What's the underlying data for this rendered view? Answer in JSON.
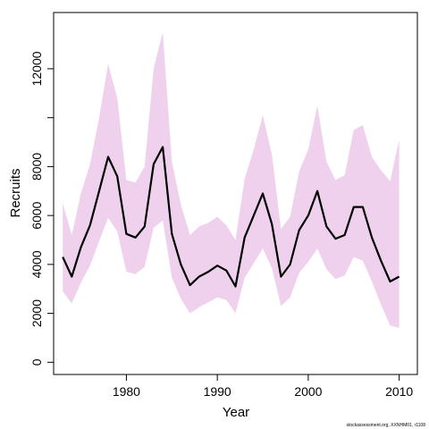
{
  "chart_data": {
    "type": "line",
    "title": "",
    "xlabel": "Year",
    "ylabel": "Recruits",
    "xlim": [
      1972,
      2012
    ],
    "ylim": [
      -500,
      14300
    ],
    "x_ticks": [
      1980,
      1990,
      2000,
      2010
    ],
    "y_ticks": [
      0,
      2000,
      4000,
      6000,
      8000,
      10000,
      12000
    ],
    "y_tick_labels": [
      "0",
      "2000",
      "4000",
      "6000",
      "8000",
      "",
      "12000"
    ],
    "grid": false,
    "legend": "none",
    "colors": {
      "band": "#efd1ed",
      "line": "#000000"
    },
    "series": [
      {
        "type": "line",
        "x": [
          1973,
          1974,
          1975,
          1976,
          1977,
          1978,
          1979,
          1980,
          1981,
          1982,
          1983,
          1984,
          1985,
          1986,
          1987,
          1988,
          1989,
          1990,
          1991,
          1992,
          1993,
          1994,
          1995,
          1996,
          1997,
          1998,
          1999,
          2000,
          2001,
          2002,
          2003,
          2004,
          2005,
          2006,
          2007,
          2008,
          2009,
          2010
        ],
        "values": [
          4300,
          3500,
          4700,
          5600,
          7000,
          8400,
          7600,
          5250,
          5100,
          5550,
          8100,
          8800,
          5250,
          4000,
          3150,
          3500,
          3700,
          3950,
          3750,
          3100,
          5100,
          6000,
          6900,
          5650,
          3500,
          4000,
          5400,
          6000,
          7000,
          5550,
          5050,
          5200,
          6350,
          6350,
          5100,
          4150,
          3300,
          3500
        ]
      },
      {
        "type": "area",
        "x": [
          1973,
          1974,
          1975,
          1976,
          1977,
          1978,
          1979,
          1980,
          1981,
          1982,
          1983,
          1984,
          1985,
          1986,
          1987,
          1988,
          1989,
          1990,
          1991,
          1992,
          1993,
          1994,
          1995,
          1996,
          1997,
          1998,
          1999,
          2000,
          2001,
          2002,
          2003,
          2004,
          2005,
          2006,
          2007,
          2008,
          2009,
          2010
        ],
        "upper": [
          6500,
          5200,
          6900,
          8100,
          10000,
          12200,
          10800,
          7450,
          7350,
          8000,
          12000,
          13500,
          8200,
          6450,
          5200,
          5550,
          5700,
          5950,
          5600,
          5000,
          7500,
          8700,
          10100,
          8500,
          5450,
          5950,
          7800,
          8700,
          10500,
          8200,
          7450,
          7650,
          9500,
          9700,
          8400,
          7850,
          7400,
          9100
        ],
        "lower": [
          2900,
          2400,
          3250,
          3950,
          4950,
          5900,
          5350,
          3700,
          3600,
          3900,
          5500,
          5800,
          3450,
          2600,
          2000,
          2250,
          2450,
          2650,
          2550,
          2000,
          3450,
          4050,
          4650,
          3850,
          2300,
          2650,
          3650,
          4100,
          4650,
          3800,
          3400,
          3550,
          4300,
          4150,
          3300,
          2350,
          1500,
          1400
        ]
      }
    ]
  },
  "footer": {
    "credit": "stockassessment.org, XXNHM01, r1108"
  }
}
